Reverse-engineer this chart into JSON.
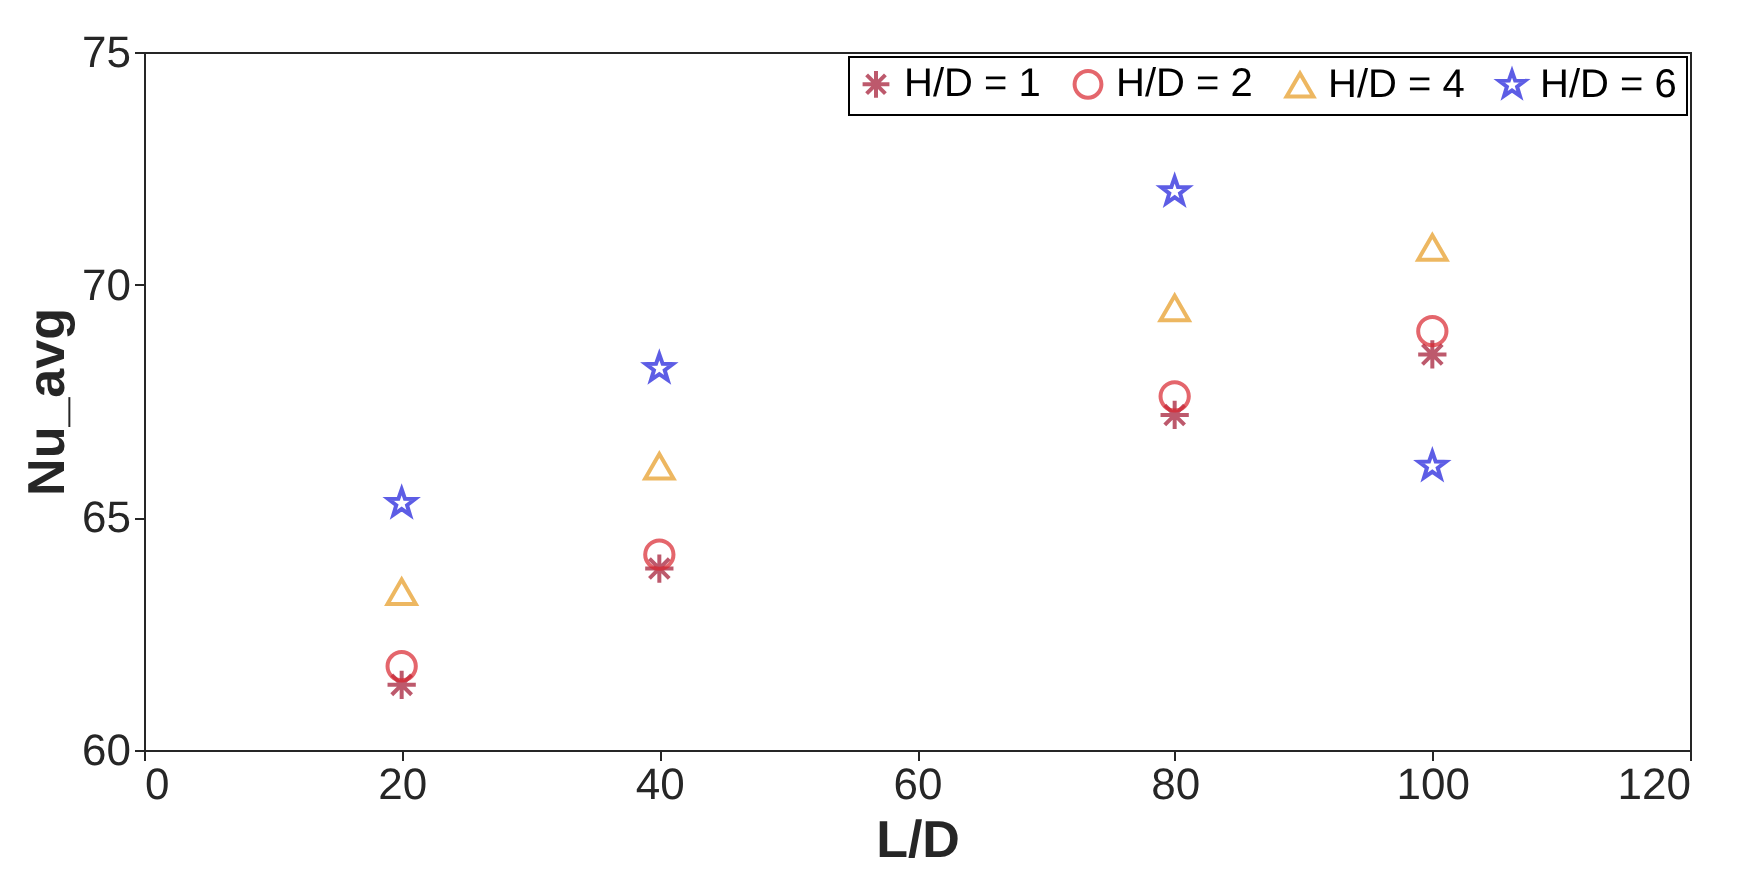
{
  "chart_data": {
    "type": "scatter",
    "xlabel": "L/D",
    "ylabel": "Nu_avg",
    "x": [
      20,
      40,
      80,
      100
    ],
    "series": [
      {
        "name": "H/D = 1",
        "color": "#a2142f",
        "marker": "cross",
        "values": [
          61.4,
          63.9,
          67.2,
          68.5
        ]
      },
      {
        "name": "H/D = 2",
        "color": "#d9262f",
        "marker": "circle",
        "values": [
          61.8,
          64.2,
          67.6,
          69.0
        ]
      },
      {
        "name": "H/D = 4",
        "color": "#e69a1f",
        "marker": "triangle",
        "values": [
          63.4,
          66.1,
          69.5,
          70.8
        ]
      },
      {
        "name": "H/D = 6",
        "color": "#1a1adb",
        "marker": "star",
        "values": [
          65.3,
          68.2,
          72.0,
          66.1
        ]
      }
    ],
    "xlim": [
      0,
      120
    ],
    "xticks": [
      0,
      20,
      40,
      60,
      80,
      100,
      120
    ],
    "ylim": [
      60,
      75
    ],
    "yticks": [
      60,
      65,
      70,
      75
    ],
    "grid": false,
    "legend": "top right"
  }
}
